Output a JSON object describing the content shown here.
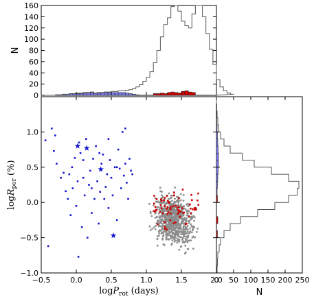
{
  "chart_data": [
    {
      "type": "scatter",
      "panel": "main",
      "xlabel": "log P_rot (days)",
      "ylabel": "log R_per (%)",
      "xlim": [
        -0.5,
        2.0
      ],
      "ylim": [
        -1.0,
        1.5
      ],
      "xticks": [
        "−0.5",
        "0.0",
        "0.5",
        "1.0",
        "1.5",
        "2.0"
      ],
      "yticks": [
        "−1.0",
        "−0.5",
        "0.0",
        "0.5",
        "1.0"
      ],
      "colors": {
        "blue": "#1414d2",
        "red": "#cc0000",
        "gray": "#8c8c8c"
      },
      "star_points": [
        {
          "x": 0.02,
          "y": 0.8
        },
        {
          "x": 0.15,
          "y": 0.77
        },
        {
          "x": 0.35,
          "y": 0.47
        },
        {
          "x": 0.53,
          "y": -0.47
        }
      ],
      "blue_points": [
        [
          -0.44,
          0.88
        ],
        [
          -0.35,
          1.05
        ],
        [
          -0.32,
          0.73
        ],
        [
          -0.28,
          0.55
        ],
        [
          -0.22,
          0.35
        ],
        [
          -0.18,
          0.42
        ],
        [
          -0.15,
          0.16
        ],
        [
          -0.12,
          0.05
        ],
        [
          -0.1,
          0.4
        ],
        [
          -0.08,
          -0.18
        ],
        [
          -0.05,
          0.2
        ],
        [
          -0.02,
          0.63
        ],
        [
          0.0,
          -0.05
        ],
        [
          0.02,
          0.3
        ],
        [
          0.04,
          0.85
        ],
        [
          0.06,
          0.7
        ],
        [
          0.08,
          -0.35
        ],
        [
          0.1,
          0.6
        ],
        [
          0.12,
          0.1
        ],
        [
          0.14,
          0.9
        ],
        [
          0.16,
          -0.5
        ],
        [
          0.18,
          0.25
        ],
        [
          0.2,
          0.45
        ],
        [
          0.22,
          -0.15
        ],
        [
          0.24,
          0.62
        ],
        [
          0.26,
          0.05
        ],
        [
          0.28,
          0.8
        ],
        [
          0.3,
          0.3
        ],
        [
          0.32,
          -0.3
        ],
        [
          0.34,
          0.15
        ],
        [
          0.36,
          0.55
        ],
        [
          0.38,
          0.68
        ],
        [
          0.4,
          0.05
        ],
        [
          0.42,
          0.22
        ],
        [
          0.44,
          0.4
        ],
        [
          0.46,
          -0.08
        ],
        [
          0.48,
          0.6
        ],
        [
          0.5,
          0.35
        ],
        [
          0.52,
          0.1
        ],
        [
          0.55,
          0.5
        ],
        [
          0.58,
          -0.25
        ],
        [
          0.6,
          0.75
        ],
        [
          0.62,
          0.48
        ],
        [
          0.64,
          0.2
        ],
        [
          0.66,
          1.0
        ],
        [
          0.68,
          0.38
        ],
        [
          0.7,
          0.55
        ],
        [
          0.72,
          0.28
        ],
        [
          0.74,
          0.05
        ],
        [
          0.76,
          0.62
        ],
        [
          0.78,
          0.45
        ],
        [
          -0.3,
          0.95
        ],
        [
          -0.4,
          -0.62
        ],
        [
          0.03,
          -0.77
        ],
        [
          -0.06,
          0.5
        ],
        [
          0.1,
          0.35
        ],
        [
          0.22,
          0.2
        ],
        [
          0.33,
          0.7
        ],
        [
          0.46,
          0.9
        ],
        [
          0.58,
          0.5
        ],
        [
          0.7,
          1.05
        ],
        [
          0.8,
          0.4
        ]
      ],
      "gray_cloud": {
        "x_range": [
          0.7,
          1.78
        ],
        "y_range": [
          -0.85,
          0.62
        ],
        "count": 780
      },
      "red_cloud": {
        "x_range": [
          1.1,
          1.75
        ],
        "y_range": [
          -0.55,
          0.4
        ],
        "count": 70
      }
    },
    {
      "type": "histogram",
      "panel": "top",
      "ylabel": "N",
      "xlim": [
        -0.5,
        2.0
      ],
      "ylim": [
        0,
        160
      ],
      "yticks": [
        "0",
        "20",
        "40",
        "60",
        "80",
        "100",
        "120",
        "140",
        "160"
      ],
      "bin_start": -0.5,
      "bin_width": 0.05,
      "all_counts": [
        0,
        0,
        0,
        0,
        1,
        1,
        2,
        2,
        3,
        3,
        4,
        4,
        5,
        5,
        6,
        4,
        5,
        5,
        6,
        6,
        7,
        7,
        8,
        8,
        9,
        10,
        12,
        15,
        19,
        25,
        32,
        42,
        58,
        80,
        104,
        126,
        138,
        158,
        160,
        150,
        132,
        124,
        120,
        145,
        162,
        160,
        140,
        110,
        82,
        55,
        28,
        15,
        8,
        4,
        2
      ],
      "blue_counts": [
        0,
        0,
        0,
        0,
        1,
        1,
        2,
        2,
        3,
        3,
        3,
        3,
        4,
        4,
        5,
        3,
        4,
        4,
        5,
        5,
        5,
        5,
        5,
        5,
        4,
        3,
        2,
        1,
        0,
        0,
        0,
        0,
        0,
        0,
        0,
        0,
        0,
        0,
        0,
        0,
        0,
        0,
        0,
        0,
        0,
        0,
        0,
        0,
        0,
        0,
        0,
        0,
        0,
        0,
        0
      ],
      "red_counts": [
        0,
        0,
        0,
        0,
        0,
        0,
        0,
        0,
        0,
        0,
        0,
        0,
        0,
        0,
        0,
        0,
        0,
        0,
        0,
        0,
        0,
        0,
        0,
        0,
        0,
        0,
        0,
        0,
        0,
        0,
        0,
        0,
        3,
        3,
        4,
        3,
        5,
        6,
        5,
        4,
        7,
        8,
        6,
        5,
        0,
        0,
        0,
        0,
        0,
        0,
        0,
        0,
        0,
        0,
        0
      ]
    },
    {
      "type": "histogram",
      "panel": "right",
      "orientation": "horizontal",
      "xlabel": "N",
      "xlim": [
        0,
        250
      ],
      "ylim": [
        -1.0,
        1.5
      ],
      "xticks": [
        "0",
        "50",
        "100",
        "150",
        "200",
        "250"
      ],
      "bin_start": -1.0,
      "bin_width": 0.1,
      "all_counts": [
        2,
        3,
        4,
        8,
        12,
        22,
        40,
        70,
        120,
        170,
        210,
        235,
        240,
        210,
        160,
        110,
        75,
        40,
        22,
        12,
        7,
        4,
        2,
        1,
        0
      ],
      "blue_counts": [
        0,
        0,
        0,
        0,
        0,
        0,
        0,
        0,
        0,
        0,
        0,
        2,
        3,
        4,
        5,
        6,
        6,
        5,
        4,
        3,
        2,
        1,
        0,
        0,
        0
      ],
      "red_counts": [
        0,
        0,
        0,
        0,
        0,
        3,
        0,
        4,
        0,
        0,
        3,
        0,
        0,
        0,
        0,
        0,
        0,
        0,
        0,
        0,
        0,
        0,
        0,
        0,
        0
      ]
    }
  ]
}
